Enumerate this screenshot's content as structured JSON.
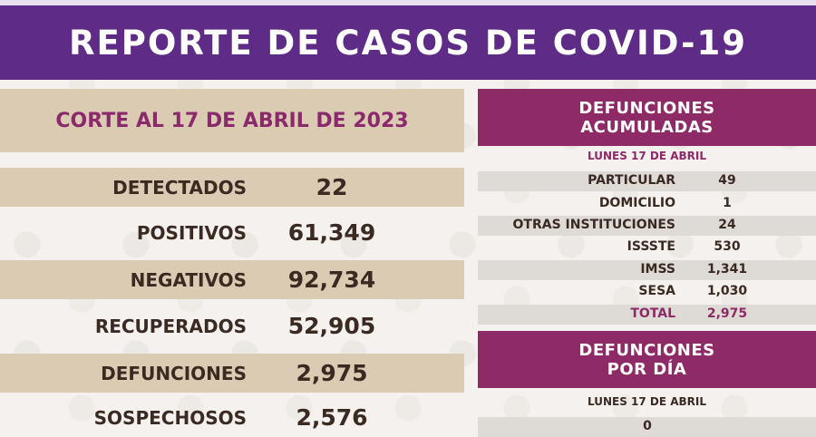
{
  "title": "REPORTE DE CASOS DE COVID-19",
  "cutoff": "CORTE AL 17 DE ABRIL DE 2023",
  "stats": [
    {
      "label": "DETECTADOS",
      "value": "22"
    },
    {
      "label": "POSITIVOS",
      "value": "61,349"
    },
    {
      "label": "NEGATIVOS",
      "value": "92,734"
    },
    {
      "label": "RECUPERADOS",
      "value": "52,905"
    },
    {
      "label": "DEFUNCIONES",
      "value": "2,975"
    },
    {
      "label": "SOSPECHOSOS",
      "value": "2,576"
    }
  ],
  "accumulated": {
    "heading_line1": "DEFUNCIONES",
    "heading_line2": "ACUMULADAS",
    "date": "LUNES 17 DE ABRIL",
    "rows": [
      {
        "label": "PARTICULAR",
        "value": "49"
      },
      {
        "label": "DOMICILIO",
        "value": "1"
      },
      {
        "label": "OTRAS INSTITUCIONES",
        "value": "24"
      },
      {
        "label": "ISSSTE",
        "value": "530"
      },
      {
        "label": "IMSS",
        "value": "1,341"
      },
      {
        "label": "SESA",
        "value": "1,030"
      }
    ],
    "total_label": "TOTAL",
    "total_value": "2,975"
  },
  "per_day": {
    "heading_line1": "DEFUNCIONES",
    "heading_line2": "POR DÍA",
    "date": "LUNES 17 DE ABRIL",
    "value": "0"
  },
  "colors": {
    "purple": "#5e2b86",
    "magenta": "#8e2a66",
    "beige": "#dccbb3",
    "gray_row": "#dedad6"
  }
}
